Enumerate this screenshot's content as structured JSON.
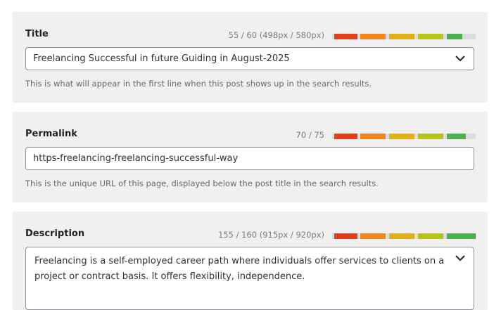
{
  "sections": [
    {
      "label": "Title",
      "counter": "55 / 60 (498px / 580px)",
      "value": "Freelancing Successful in future Guiding in August-2025",
      "help": "This is what will appear in the first line when this post shows up in the search results."
    },
    {
      "label": "Permalink",
      "counter": "70 / 75",
      "value": "https-freelancing-freelancing-successful-way",
      "help": "This is the unique URL of this page, displayed below the post title in the search results."
    },
    {
      "label": "Description",
      "counter": "155 / 160 (915px / 920px)",
      "value": "Freelancing is a self-employed career path where individuals offer services to clients on a project or contract basis. It offers flexibility, independence."
    }
  ]
}
